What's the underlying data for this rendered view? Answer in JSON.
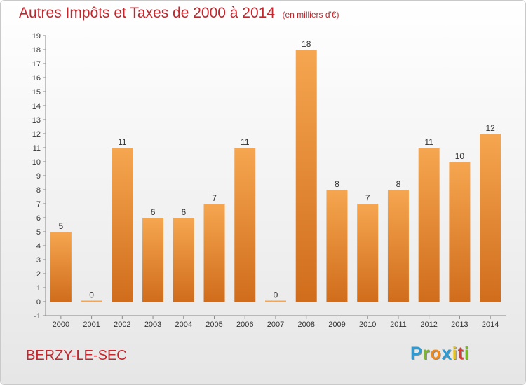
{
  "title": "Autres Impôts et Taxes de 2000 à 2014",
  "subtitle": "(en milliers d'€)",
  "commune": "BERZY-LE-SEC",
  "brand": {
    "text": "Proxiti",
    "letters": [
      "P",
      "r",
      "o",
      "x",
      "i",
      "t",
      "i"
    ],
    "colors": [
      "#2b9bd6",
      "#7ab829",
      "#f08a1c",
      "#2b9bd6",
      "#e8c51a",
      "#e03a2e",
      "#7ab829"
    ]
  },
  "colors": {
    "title": "#c1272d",
    "bar_top": "#f6a650",
    "bar_bottom": "#d06d1c",
    "axis": "#888888",
    "tick_text": "#333333"
  },
  "chart_data": {
    "type": "bar",
    "categories": [
      "2000",
      "2001",
      "2002",
      "2003",
      "2004",
      "2005",
      "2006",
      "2007",
      "2008",
      "2009",
      "2010",
      "2011",
      "2012",
      "2013",
      "2014"
    ],
    "values": [
      5,
      0,
      11,
      6,
      6,
      7,
      11,
      0,
      18,
      8,
      7,
      8,
      11,
      10,
      12
    ],
    "data_labels": [
      "5",
      "0",
      "11",
      "6",
      "6",
      "7",
      "11",
      "0",
      "18",
      "8",
      "7",
      "8",
      "11",
      "10",
      "12"
    ],
    "y_ticks": [
      "-1",
      "0",
      "1",
      "2",
      "3",
      "4",
      "5",
      "6",
      "7",
      "8",
      "9",
      "10",
      "11",
      "12",
      "13",
      "14",
      "15",
      "16",
      "17",
      "18",
      "19"
    ],
    "ylim": [
      -1,
      19
    ],
    "grid": false,
    "xlabel": "",
    "ylabel": ""
  }
}
